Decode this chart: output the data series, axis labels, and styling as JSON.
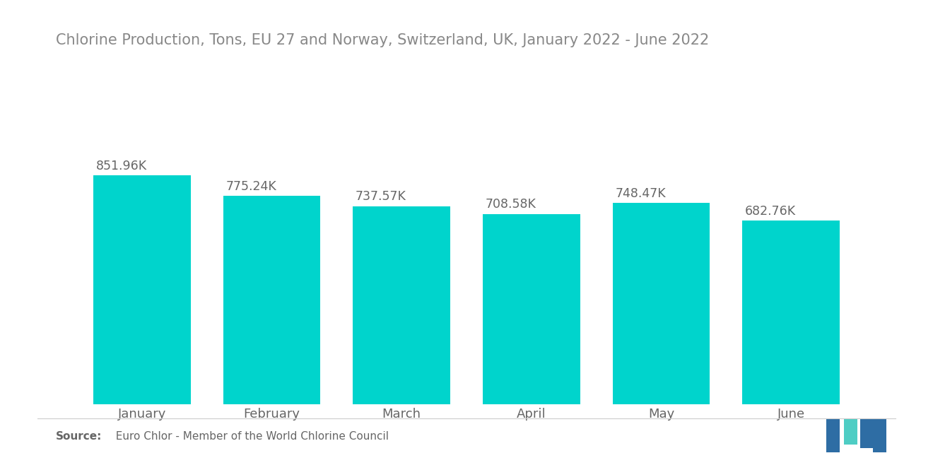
{
  "title": "Chlorine Production, Tons, EU 27 and Norway, Switzerland, UK, January 2022 - June 2022",
  "categories": [
    "January",
    "February",
    "March",
    "April",
    "May",
    "June"
  ],
  "values": [
    851960,
    775240,
    737570,
    708580,
    748470,
    682760
  ],
  "labels": [
    "851.96K",
    "775.24K",
    "737.57K",
    "708.58K",
    "748.47K",
    "682.76K"
  ],
  "bar_color": "#00D4CC",
  "background_color": "#ffffff",
  "title_color": "#888888",
  "label_color": "#666666",
  "tick_color": "#666666",
  "source_bold": "Source:",
  "source_text": "  Euro Chlor - Member of the World Chlorine Council",
  "title_fontsize": 15,
  "label_fontsize": 12.5,
  "tick_fontsize": 13,
  "source_fontsize": 11,
  "ylim": [
    0,
    980000
  ]
}
